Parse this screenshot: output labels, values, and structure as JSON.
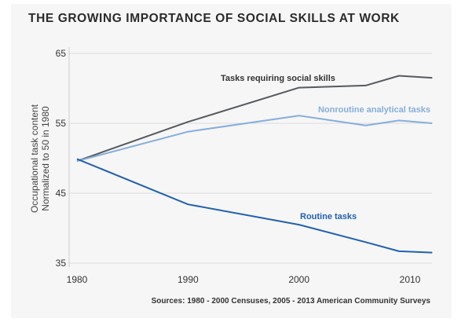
{
  "chart_data": {
    "type": "line",
    "title": "THE GROWING IMPORTANCE OF SOCIAL SKILLS AT WORK",
    "ylabel": "Occupational task content",
    "ylabel_sub": "Normalized to 50 in 1980",
    "xlabel": "",
    "xlim": [
      1980,
      2012
    ],
    "ylim": [
      35,
      65
    ],
    "x_ticks": [
      "1980",
      "1990",
      "2000",
      "2010"
    ],
    "y_ticks": [
      "35",
      "45",
      "55",
      "65"
    ],
    "grid": "horizontal",
    "source": "Sources: 1980 - 2000 Censuses, 2005 - 2013 American Community Surveys",
    "series": [
      {
        "name": "Tasks requiring social skills",
        "color": "#555a5f",
        "x": [
          1980,
          1990,
          2000,
          2006,
          2009,
          2012
        ],
        "y": [
          49.6,
          55.2,
          60.1,
          60.4,
          61.8,
          61.5
        ]
      },
      {
        "name": "Nonroutine analytical tasks",
        "color": "#86aedb",
        "x": [
          1980,
          1990,
          2000,
          2006,
          2009,
          2012
        ],
        "y": [
          49.6,
          53.8,
          56.1,
          54.7,
          55.4,
          55.0
        ]
      },
      {
        "name": "Routine tasks",
        "color": "#2160b0",
        "x": [
          1980,
          1990,
          2000,
          2006,
          2009,
          2012
        ],
        "y": [
          49.9,
          43.4,
          40.5,
          38.0,
          36.7,
          36.5
        ]
      }
    ]
  }
}
